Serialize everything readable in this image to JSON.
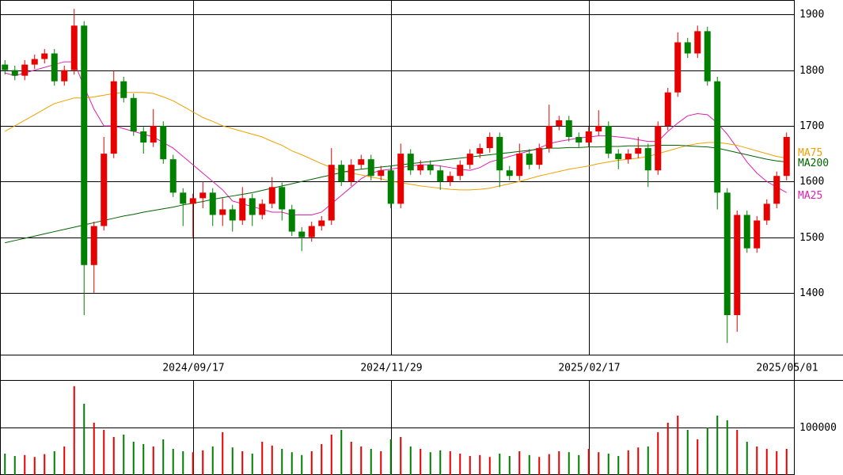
{
  "chart_data": {
    "type": "candlestick",
    "categories": [
      null,
      null,
      null,
      null,
      null,
      null,
      null,
      null,
      null,
      null,
      null,
      null,
      null,
      null,
      null,
      null,
      null,
      null,
      null,
      "2024/09/17",
      null,
      null,
      null,
      null,
      null,
      null,
      null,
      null,
      null,
      null,
      null,
      null,
      null,
      null,
      null,
      null,
      null,
      null,
      null,
      "2024/11/29",
      null,
      null,
      null,
      null,
      null,
      null,
      null,
      null,
      null,
      null,
      null,
      null,
      null,
      null,
      null,
      null,
      null,
      null,
      null,
      "2025/02/17",
      null,
      null,
      null,
      null,
      null,
      null,
      null,
      null,
      null,
      null,
      null,
      null,
      null,
      null,
      null,
      null,
      null,
      null,
      null,
      "2025/05/01"
    ],
    "open": [
      1810,
      1800,
      1790,
      1810,
      1820,
      1830,
      1780,
      1800,
      1880,
      1450,
      1520,
      1650,
      1780,
      1750,
      1690,
      1670,
      1700,
      1640,
      1580,
      1560,
      1570,
      1580,
      1540,
      1550,
      1530,
      1570,
      1540,
      1560,
      1590,
      1550,
      1510,
      1500,
      1520,
      1530,
      1630,
      1600,
      1630,
      1640,
      1610,
      1620,
      1560,
      1650,
      1620,
      1630,
      1620,
      1600,
      1610,
      1630,
      1650,
      1660,
      1680,
      1620,
      1610,
      1650,
      1630,
      1660,
      1700,
      1710,
      1680,
      1670,
      1690,
      1700,
      1650,
      1640,
      1650,
      1660,
      1620,
      1700,
      1760,
      1850,
      1830,
      1870,
      1780,
      1580,
      1360,
      1540,
      1480,
      1530,
      1560,
      1610
    ],
    "high": [
      1818,
      1808,
      1818,
      1828,
      1838,
      1838,
      1808,
      1910,
      1888,
      1528,
      1680,
      1800,
      1788,
      1758,
      1698,
      1730,
      1708,
      1648,
      1588,
      1578,
      1600,
      1588,
      1570,
      1558,
      1590,
      1578,
      1568,
      1608,
      1598,
      1558,
      1518,
      1528,
      1538,
      1660,
      1638,
      1640,
      1648,
      1648,
      1628,
      1628,
      1668,
      1658,
      1638,
      1638,
      1628,
      1618,
      1638,
      1658,
      1668,
      1688,
      1688,
      1628,
      1668,
      1658,
      1668,
      1738,
      1718,
      1718,
      1688,
      1698,
      1728,
      1708,
      1658,
      1658,
      1680,
      1668,
      1708,
      1768,
      1868,
      1858,
      1880,
      1878,
      1788,
      1588,
      1548,
      1548,
      1538,
      1568,
      1618,
      1688
    ],
    "low": [
      1792,
      1782,
      1782,
      1802,
      1812,
      1772,
      1772,
      1792,
      1360,
      1400,
      1512,
      1642,
      1742,
      1682,
      1650,
      1662,
      1632,
      1572,
      1520,
      1500,
      1552,
      1520,
      1520,
      1510,
      1522,
      1520,
      1532,
      1552,
      1530,
      1502,
      1475,
      1492,
      1512,
      1522,
      1592,
      1592,
      1622,
      1602,
      1602,
      1552,
      1552,
      1612,
      1612,
      1612,
      1585,
      1592,
      1602,
      1622,
      1642,
      1652,
      1590,
      1602,
      1602,
      1622,
      1622,
      1652,
      1692,
      1672,
      1662,
      1662,
      1682,
      1642,
      1622,
      1632,
      1642,
      1590,
      1612,
      1692,
      1752,
      1822,
      1822,
      1772,
      1550,
      1310,
      1330,
      1472,
      1472,
      1522,
      1552,
      1602
    ],
    "close": [
      1800,
      1790,
      1810,
      1820,
      1830,
      1780,
      1800,
      1880,
      1450,
      1520,
      1650,
      1780,
      1750,
      1690,
      1670,
      1700,
      1640,
      1580,
      1560,
      1570,
      1580,
      1540,
      1550,
      1530,
      1570,
      1540,
      1560,
      1590,
      1550,
      1510,
      1500,
      1520,
      1530,
      1630,
      1600,
      1630,
      1640,
      1610,
      1620,
      1560,
      1650,
      1620,
      1630,
      1620,
      1600,
      1610,
      1630,
      1650,
      1660,
      1680,
      1620,
      1610,
      1650,
      1630,
      1660,
      1700,
      1710,
      1680,
      1670,
      1690,
      1700,
      1650,
      1640,
      1650,
      1660,
      1620,
      1700,
      1760,
      1850,
      1830,
      1870,
      1780,
      1580,
      1360,
      1540,
      1480,
      1530,
      1560,
      1610,
      1680
    ],
    "up_color": "#e60000",
    "down_color": "#008000",
    "series": [
      {
        "name": "MA25",
        "color": "#e020b0",
        "values": [
          1795,
          1790,
          1795,
          1800,
          1805,
          1810,
          1815,
          1815,
          1770,
          1730,
          1700,
          1700,
          1695,
          1690,
          1685,
          1680,
          1670,
          1660,
          1645,
          1630,
          1615,
          1600,
          1585,
          1565,
          1560,
          1555,
          1550,
          1545,
          1545,
          1540,
          1540,
          1540,
          1545,
          1560,
          1575,
          1590,
          1605,
          1615,
          1620,
          1622,
          1625,
          1628,
          1630,
          1630,
          1628,
          1625,
          1622,
          1620,
          1625,
          1635,
          1640,
          1645,
          1650,
          1655,
          1660,
          1668,
          1672,
          1675,
          1678,
          1680,
          1682,
          1682,
          1680,
          1678,
          1675,
          1672,
          1672,
          1690,
          1705,
          1718,
          1722,
          1720,
          1705,
          1685,
          1660,
          1635,
          1615,
          1600,
          1590,
          1580
        ]
      },
      {
        "name": "MA75",
        "color": "#f0a000",
        "values": [
          1690,
          1700,
          1710,
          1720,
          1730,
          1740,
          1745,
          1750,
          1750,
          1752,
          1755,
          1758,
          1760,
          1760,
          1760,
          1758,
          1752,
          1745,
          1735,
          1725,
          1715,
          1708,
          1700,
          1695,
          1690,
          1685,
          1680,
          1672,
          1665,
          1655,
          1648,
          1640,
          1632,
          1625,
          1620,
          1615,
          1612,
          1608,
          1605,
          1600,
          1598,
          1595,
          1592,
          1590,
          1588,
          1586,
          1585,
          1585,
          1586,
          1588,
          1592,
          1596,
          1600,
          1605,
          1610,
          1614,
          1618,
          1622,
          1625,
          1628,
          1632,
          1635,
          1638,
          1640,
          1642,
          1645,
          1650,
          1655,
          1660,
          1665,
          1668,
          1670,
          1670,
          1668,
          1665,
          1660,
          1655,
          1650,
          1645,
          1642
        ]
      },
      {
        "name": "MA200",
        "color": "#006400",
        "values": [
          1490,
          1494,
          1498,
          1502,
          1506,
          1510,
          1514,
          1518,
          1522,
          1526,
          1530,
          1534,
          1538,
          1541,
          1545,
          1548,
          1551,
          1554,
          1558,
          1561,
          1564,
          1568,
          1571,
          1574,
          1577,
          1580,
          1584,
          1588,
          1592,
          1596,
          1600,
          1604,
          1608,
          1612,
          1616,
          1620,
          1622,
          1624,
          1626,
          1628,
          1630,
          1632,
          1634,
          1636,
          1638,
          1640,
          1642,
          1644,
          1646,
          1648,
          1650,
          1652,
          1654,
          1656,
          1658,
          1660,
          1660,
          1661,
          1661,
          1662,
          1662,
          1663,
          1663,
          1664,
          1664,
          1664,
          1665,
          1665,
          1665,
          1664,
          1663,
          1662,
          1660,
          1656,
          1652,
          1648,
          1644,
          1640,
          1637,
          1635
        ]
      }
    ],
    "ylim": [
      1289,
      1926
    ],
    "yticks": [
      1400,
      1500,
      1600,
      1700,
      1800,
      1900
    ],
    "grid": true,
    "volume": {
      "values": [
        45000,
        40000,
        42000,
        38000,
        44000,
        50000,
        60000,
        187000,
        150000,
        110000,
        95000,
        80000,
        85000,
        70000,
        65000,
        60000,
        75000,
        55000,
        50000,
        48000,
        52000,
        60000,
        90000,
        58000,
        50000,
        45000,
        70000,
        62000,
        55000,
        48000,
        42000,
        50000,
        65000,
        85000,
        95000,
        70000,
        60000,
        55000,
        50000,
        75000,
        80000,
        60000,
        55000,
        48000,
        52000,
        50000,
        45000,
        40000,
        42000,
        38000,
        45000,
        40000,
        50000,
        42000,
        38000,
        44000,
        50000,
        48000,
        42000,
        55000,
        48000,
        45000,
        40000,
        52000,
        58000,
        60000,
        90000,
        110000,
        125000,
        95000,
        75000,
        100000,
        125000,
        115000,
        95000,
        70000,
        60000,
        55000,
        50000,
        55000
      ],
      "ylim": [
        0,
        200000
      ],
      "yticks": [
        100000
      ]
    }
  }
}
